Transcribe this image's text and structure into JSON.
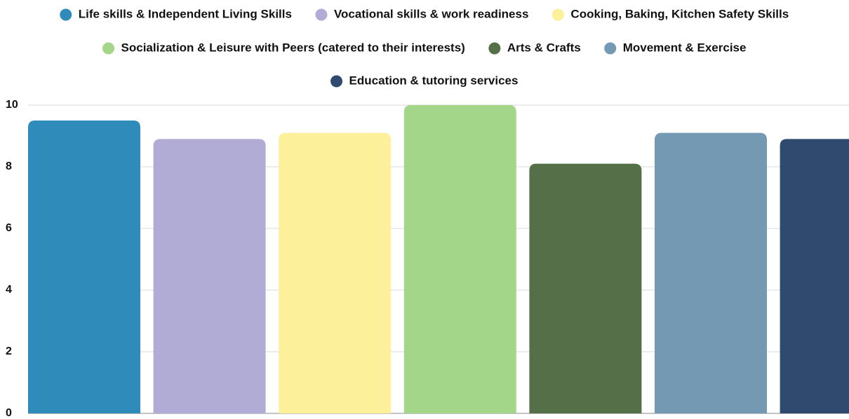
{
  "chart_data": {
    "type": "bar",
    "series": [
      {
        "name": "Life skills & Independent Living Skills",
        "color": "#2e8bba",
        "values": [
          9.5
        ]
      },
      {
        "name": "Vocational skills & work readiness",
        "color": "#b0acd6",
        "values": [
          8.9
        ]
      },
      {
        "name": "Cooking, Baking, Kitchen Safety Skills",
        "color": "#fdf09a",
        "values": [
          9.1
        ]
      },
      {
        "name": "Socialization & Leisure with Peers (catered to their interests)",
        "color": "#a3d689",
        "values": [
          10
        ]
      },
      {
        "name": "Arts & Crafts",
        "color": "#557048",
        "values": [
          8.1
        ]
      },
      {
        "name": "Movement & Exercise",
        "color": "#7499b2",
        "values": [
          9.1
        ]
      },
      {
        "name": "Education & tutoring services",
        "color": "#2f4a6e",
        "values": [
          8.9
        ]
      }
    ],
    "ylim": [
      0,
      10
    ],
    "yticks": [
      0,
      2,
      4,
      6,
      8,
      10
    ],
    "grid": true
  }
}
